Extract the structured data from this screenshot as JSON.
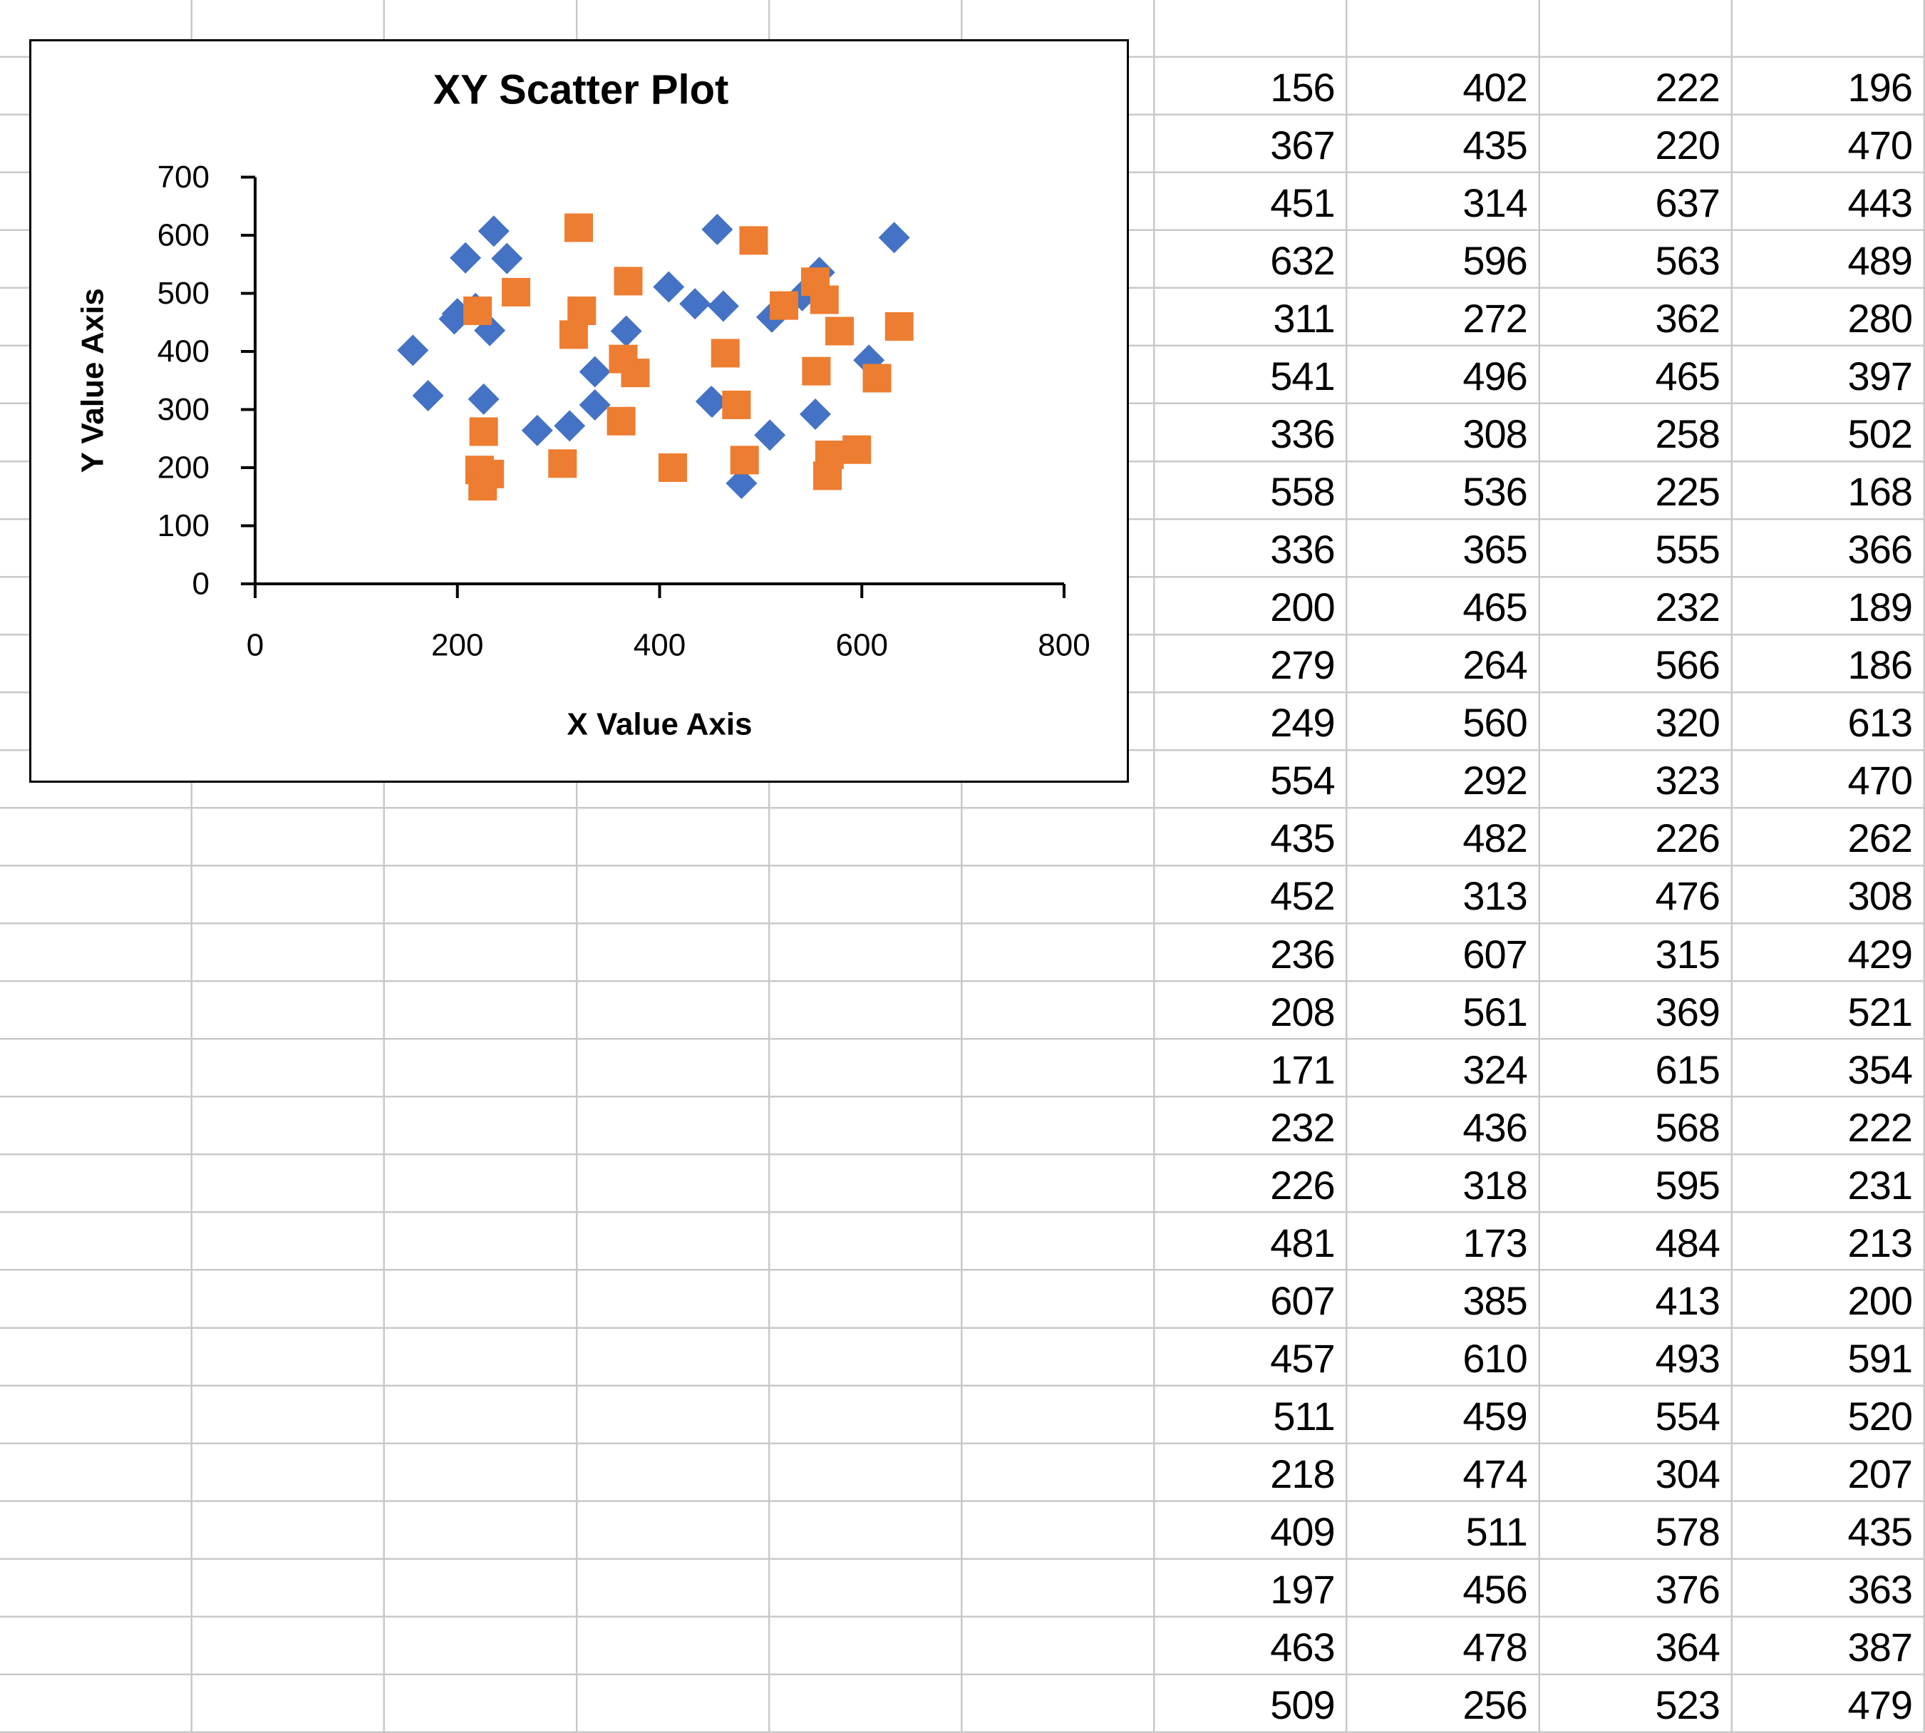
{
  "chart_data": {
    "type": "scatter",
    "title": "XY Scatter Plot",
    "xlabel": "X Value Axis",
    "ylabel": "Y Value Axis",
    "xlim": [
      0,
      800
    ],
    "ylim": [
      0,
      700
    ],
    "xticks": [
      0,
      200,
      400,
      600,
      800
    ],
    "yticks": [
      0,
      100,
      200,
      300,
      400,
      500,
      600,
      700
    ],
    "grid": false,
    "legend_position": "none",
    "axis_color": "#000000",
    "series": [
      {
        "id": "series-1",
        "marker": "diamond",
        "color": "#4472C4",
        "points": [
          [
            156,
            402
          ],
          [
            367,
            435
          ],
          [
            451,
            314
          ],
          [
            632,
            596
          ],
          [
            311,
            272
          ],
          [
            541,
            496
          ],
          [
            336,
            308
          ],
          [
            558,
            536
          ],
          [
            336,
            365
          ],
          [
            200,
            465
          ],
          [
            279,
            264
          ],
          [
            249,
            560
          ],
          [
            554,
            292
          ],
          [
            435,
            482
          ],
          [
            452,
            313
          ],
          [
            236,
            607
          ],
          [
            208,
            561
          ],
          [
            171,
            324
          ],
          [
            232,
            436
          ],
          [
            226,
            318
          ],
          [
            481,
            173
          ],
          [
            607,
            385
          ],
          [
            457,
            610
          ],
          [
            511,
            459
          ],
          [
            218,
            474
          ],
          [
            409,
            511
          ],
          [
            197,
            456
          ],
          [
            463,
            478
          ],
          [
            509,
            256
          ]
        ]
      },
      {
        "id": "series-2",
        "marker": "square",
        "color": "#ED7D31",
        "points": [
          [
            222,
            196
          ],
          [
            220,
            470
          ],
          [
            637,
            443
          ],
          [
            563,
            489
          ],
          [
            362,
            280
          ],
          [
            465,
            397
          ],
          [
            258,
            502
          ],
          [
            225,
            168
          ],
          [
            555,
            366
          ],
          [
            232,
            189
          ],
          [
            566,
            186
          ],
          [
            320,
            613
          ],
          [
            323,
            470
          ],
          [
            226,
            262
          ],
          [
            476,
            308
          ],
          [
            315,
            429
          ],
          [
            369,
            521
          ],
          [
            615,
            354
          ],
          [
            568,
            222
          ],
          [
            595,
            231
          ],
          [
            484,
            213
          ],
          [
            413,
            200
          ],
          [
            493,
            591
          ],
          [
            554,
            520
          ],
          [
            304,
            207
          ],
          [
            578,
            435
          ],
          [
            376,
            363
          ],
          [
            364,
            387
          ],
          [
            523,
            479
          ]
        ]
      }
    ]
  },
  "table": {
    "rows": [
      [
        156,
        402,
        222,
        196
      ],
      [
        367,
        435,
        220,
        470
      ],
      [
        451,
        314,
        637,
        443
      ],
      [
        632,
        596,
        563,
        489
      ],
      [
        311,
        272,
        362,
        280
      ],
      [
        541,
        496,
        465,
        397
      ],
      [
        336,
        308,
        258,
        502
      ],
      [
        558,
        536,
        225,
        168
      ],
      [
        336,
        365,
        555,
        366
      ],
      [
        200,
        465,
        232,
        189
      ],
      [
        279,
        264,
        566,
        186
      ],
      [
        249,
        560,
        320,
        613
      ],
      [
        554,
        292,
        323,
        470
      ],
      [
        435,
        482,
        226,
        262
      ],
      [
        452,
        313,
        476,
        308
      ],
      [
        236,
        607,
        315,
        429
      ],
      [
        208,
        561,
        369,
        521
      ],
      [
        171,
        324,
        615,
        354
      ],
      [
        232,
        436,
        568,
        222
      ],
      [
        226,
        318,
        595,
        231
      ],
      [
        481,
        173,
        484,
        213
      ],
      [
        607,
        385,
        413,
        200
      ],
      [
        457,
        610,
        493,
        591
      ],
      [
        511,
        459,
        554,
        520
      ],
      [
        218,
        474,
        304,
        207
      ],
      [
        409,
        511,
        578,
        435
      ],
      [
        197,
        456,
        376,
        363
      ],
      [
        463,
        478,
        364,
        387
      ],
      [
        509,
        256,
        523,
        479
      ]
    ]
  }
}
